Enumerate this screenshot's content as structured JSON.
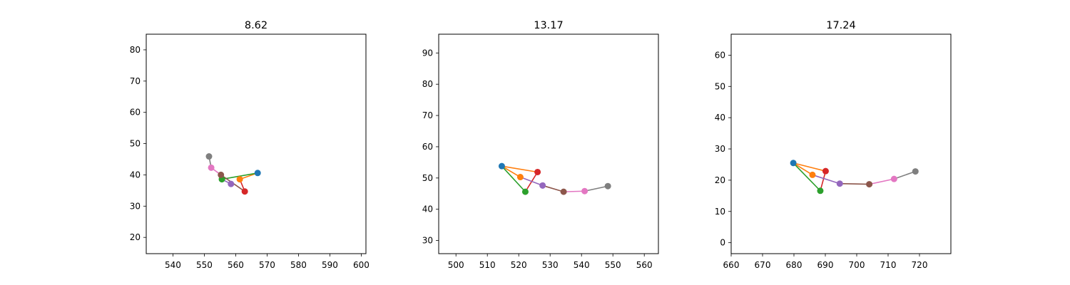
{
  "chart_data": [
    {
      "type": "line",
      "title": "8.62",
      "xlim": [
        531.5,
        601.5
      ],
      "ylim": [
        14.8,
        85.0
      ],
      "xticks": [
        540,
        550,
        560,
        570,
        580,
        590,
        600
      ],
      "yticks": [
        20,
        30,
        40,
        50,
        60,
        70,
        80
      ],
      "points": [
        {
          "x": 567.0,
          "y": 40.6
        },
        {
          "x": 561.3,
          "y": 38.6
        },
        {
          "x": 555.6,
          "y": 38.6
        },
        {
          "x": 562.9,
          "y": 34.7
        },
        {
          "x": 558.5,
          "y": 37.1
        },
        {
          "x": 555.3,
          "y": 40.0
        },
        {
          "x": 552.2,
          "y": 42.3
        },
        {
          "x": 551.5,
          "y": 45.9
        }
      ],
      "segments": [
        {
          "from": 0,
          "to": 1,
          "color": "#ff7f0e"
        },
        {
          "from": 0,
          "to": 2,
          "color": "#2ca02c"
        },
        {
          "from": 1,
          "to": 3,
          "color": "#d62728"
        },
        {
          "from": 2,
          "to": 4,
          "color": "#9467bd"
        },
        {
          "from": 3,
          "to": 5,
          "color": "#8c564b"
        },
        {
          "from": 5,
          "to": 6,
          "color": "#e377c2"
        },
        {
          "from": 6,
          "to": 7,
          "color": "#7f7f7f"
        }
      ],
      "grid": false,
      "legend": "none"
    },
    {
      "type": "line",
      "title": "13.17",
      "xlim": [
        494.5,
        564.5
      ],
      "ylim": [
        25.8,
        96.0
      ],
      "xticks": [
        500,
        510,
        520,
        530,
        540,
        550,
        560
      ],
      "yticks": [
        30,
        40,
        50,
        60,
        70,
        80,
        90
      ],
      "points": [
        {
          "x": 514.6,
          "y": 53.8
        },
        {
          "x": 520.5,
          "y": 50.3
        },
        {
          "x": 522.1,
          "y": 45.6
        },
        {
          "x": 526.0,
          "y": 51.9
        },
        {
          "x": 527.6,
          "y": 47.6
        },
        {
          "x": 534.3,
          "y": 45.6
        },
        {
          "x": 541.0,
          "y": 45.8
        },
        {
          "x": 548.4,
          "y": 47.4
        }
      ],
      "segments": [
        {
          "from": 0,
          "to": 1,
          "color": "#ff7f0e"
        },
        {
          "from": 0,
          "to": 2,
          "color": "#2ca02c"
        },
        {
          "from": 0,
          "to": 3,
          "color": "#ff7f0e"
        },
        {
          "from": 2,
          "to": 3,
          "color": "#d62728"
        },
        {
          "from": 1,
          "to": 4,
          "color": "#9467bd"
        },
        {
          "from": 4,
          "to": 5,
          "color": "#8c564b"
        },
        {
          "from": 5,
          "to": 6,
          "color": "#e377c2"
        },
        {
          "from": 6,
          "to": 7,
          "color": "#7f7f7f"
        }
      ],
      "grid": false,
      "legend": "none"
    },
    {
      "type": "line",
      "title": "17.24",
      "xlim": [
        660.0,
        730.0
      ],
      "ylim": [
        -3.5,
        66.7
      ],
      "xticks": [
        660,
        670,
        680,
        690,
        700,
        710,
        720
      ],
      "yticks": [
        0,
        10,
        20,
        30,
        40,
        50,
        60
      ],
      "points": [
        {
          "x": 679.8,
          "y": 25.5
        },
        {
          "x": 685.9,
          "y": 21.7
        },
        {
          "x": 688.4,
          "y": 16.6
        },
        {
          "x": 690.1,
          "y": 22.9
        },
        {
          "x": 694.6,
          "y": 18.9
        },
        {
          "x": 704.0,
          "y": 18.7
        },
        {
          "x": 711.9,
          "y": 20.4
        },
        {
          "x": 718.7,
          "y": 22.8
        }
      ],
      "segments": [
        {
          "from": 0,
          "to": 1,
          "color": "#ff7f0e"
        },
        {
          "from": 0,
          "to": 2,
          "color": "#2ca02c"
        },
        {
          "from": 0,
          "to": 3,
          "color": "#ff7f0e"
        },
        {
          "from": 2,
          "to": 3,
          "color": "#d62728"
        },
        {
          "from": 1,
          "to": 4,
          "color": "#9467bd"
        },
        {
          "from": 4,
          "to": 5,
          "color": "#8c564b"
        },
        {
          "from": 5,
          "to": 6,
          "color": "#e377c2"
        },
        {
          "from": 6,
          "to": 7,
          "color": "#7f7f7f"
        }
      ],
      "grid": false,
      "legend": "none"
    }
  ],
  "marker_colors": [
    "#1f77b4",
    "#ff7f0e",
    "#2ca02c",
    "#d62728",
    "#9467bd",
    "#8c564b",
    "#e377c2",
    "#7f7f7f"
  ]
}
